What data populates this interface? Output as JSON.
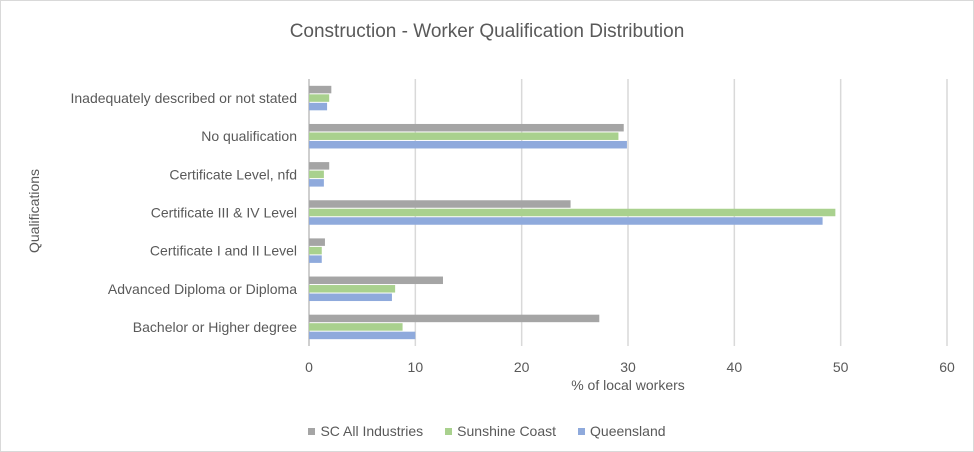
{
  "chart_data": {
    "type": "bar",
    "orientation": "horizontal",
    "title": "Construction - Worker Qualification Distribution",
    "xlabel": "% of local workers",
    "ylabel": "Qualifications",
    "xlim": [
      0,
      60
    ],
    "xticks": [
      0,
      10,
      20,
      30,
      40,
      50,
      60
    ],
    "grid": true,
    "legend_position": "bottom",
    "categories": [
      "Inadequately described or not stated",
      "No qualification",
      "Certificate Level, nfd",
      "Certificate III & IV Level",
      "Certificate I and II Level",
      "Advanced Diploma or Diploma",
      "Bachelor or Higher degree"
    ],
    "series": [
      {
        "name": "SC All Industries",
        "color": "#a5a5a5",
        "values": [
          2.1,
          29.6,
          1.9,
          24.6,
          1.5,
          12.6,
          27.3
        ]
      },
      {
        "name": "Sunshine Coast",
        "color": "#a9d18e",
        "values": [
          1.9,
          29.1,
          1.4,
          49.5,
          1.2,
          8.1,
          8.8
        ]
      },
      {
        "name": "Queensland",
        "color": "#8faadc",
        "values": [
          1.7,
          29.9,
          1.4,
          48.3,
          1.2,
          7.8,
          10.0
        ]
      }
    ]
  }
}
